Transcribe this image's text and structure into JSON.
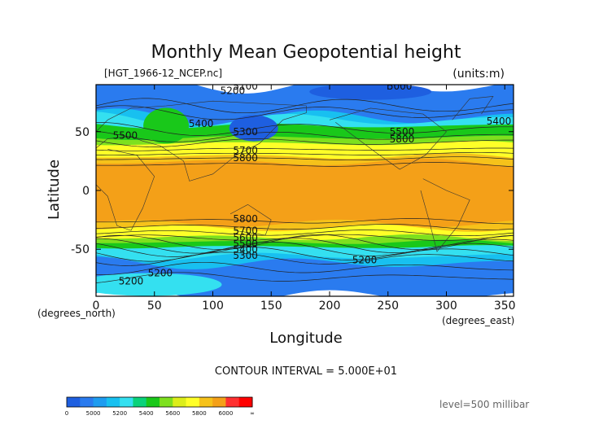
{
  "chart_data": {
    "type": "heatmap",
    "title": "Monthly Mean Geopotential height",
    "file_label": "[HGT_1966-12_NCEP.nc]",
    "units_label": "(units:m)",
    "xlabel": "Longitude",
    "ylabel": "Latitude",
    "x_unit_label": "(degrees_east)",
    "y_unit_label": "(degrees_north)",
    "xlim": [
      0,
      357.5
    ],
    "ylim": [
      -90,
      90
    ],
    "xticks": [
      0,
      50,
      100,
      150,
      200,
      250,
      300,
      350
    ],
    "yticks": [
      -50,
      0,
      50
    ],
    "contour_interval_text": "CONTOUR INTERVAL = 5.000E+01",
    "level_text": "level=500 millibar",
    "colorbar": {
      "labels": [
        "0",
        "5000",
        "5200",
        "5400",
        "5600",
        "5800",
        "6000",
        "∞"
      ],
      "colors": [
        "#1e5fe0",
        "#2a7bef",
        "#1e9cf0",
        "#18c0f0",
        "#34e0f0",
        "#0ad27a",
        "#19c81a",
        "#7ee01e",
        "#dcee1a",
        "#ffff28",
        "#f6c21a",
        "#f4a018",
        "#ff3030",
        "#ff0000"
      ]
    },
    "contour_labels": [
      {
        "text": "5100",
        "lon": 128,
        "lat": 86
      },
      {
        "text": "5200",
        "lon": 117,
        "lat": 82
      },
      {
        "text": "5000",
        "lon": 260,
        "lat": 86
      },
      {
        "text": "5300",
        "lon": 128,
        "lat": 47
      },
      {
        "text": "5400",
        "lon": 90,
        "lat": 54
      },
      {
        "text": "5400",
        "lon": 345,
        "lat": 56
      },
      {
        "text": "5500",
        "lon": 262,
        "lat": 47
      },
      {
        "text": "5800",
        "lon": 262,
        "lat": 41
      },
      {
        "text": "5500",
        "lon": 25,
        "lat": 44
      },
      {
        "text": "5700",
        "lon": 128,
        "lat": 31
      },
      {
        "text": "5800",
        "lon": 128,
        "lat": 25
      },
      {
        "text": "5800",
        "lon": 128,
        "lat": -27
      },
      {
        "text": "5700",
        "lon": 128,
        "lat": -37
      },
      {
        "text": "5600",
        "lon": 128,
        "lat": -43
      },
      {
        "text": "5500",
        "lon": 128,
        "lat": -48
      },
      {
        "text": "5400",
        "lon": 128,
        "lat": -53
      },
      {
        "text": "5300",
        "lon": 128,
        "lat": -58
      },
      {
        "text": "5200",
        "lon": 230,
        "lat": -62
      },
      {
        "text": "5200",
        "lon": 55,
        "lat": -73
      },
      {
        "text": "5200",
        "lon": 30,
        "lat": -80
      }
    ]
  }
}
